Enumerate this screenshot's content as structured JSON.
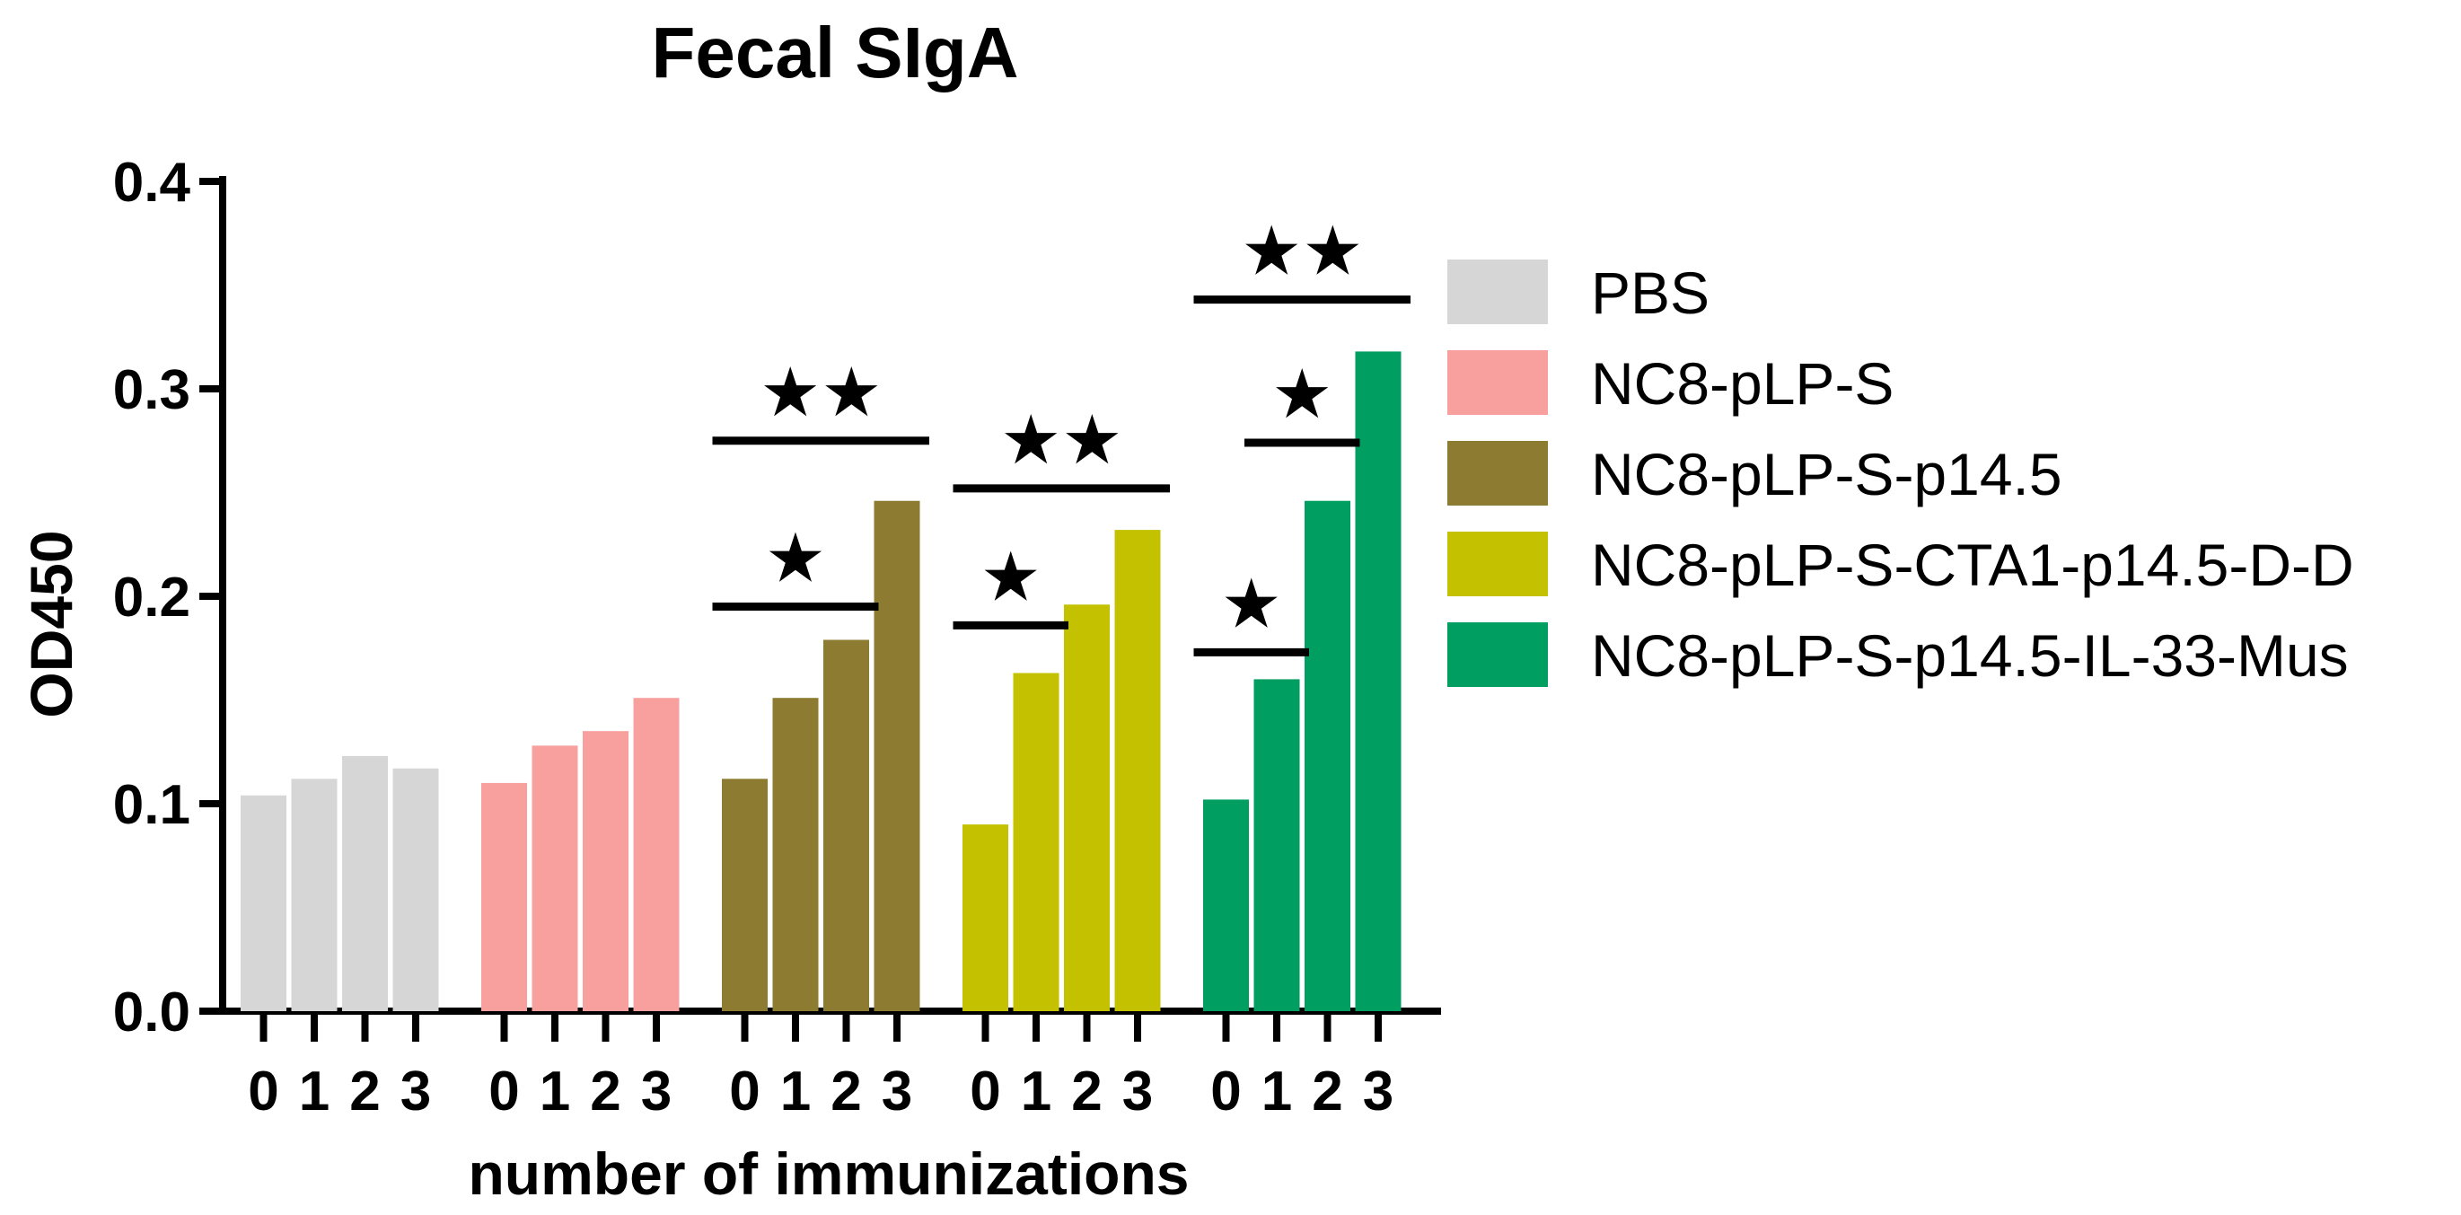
{
  "chart_data": {
    "type": "bar",
    "title": "Fecal SIgA",
    "xlabel": "number of immunizations",
    "ylabel": "OD450",
    "ylim": [
      0,
      0.4
    ],
    "yticks": [
      "0.0",
      "0.1",
      "0.2",
      "0.3",
      "0.4"
    ],
    "categories": [
      "0",
      "1",
      "2",
      "3"
    ],
    "grid": false,
    "legend_position": "right",
    "series": [
      {
        "name": "PBS",
        "color": "#d6d6d6",
        "values": [
          0.104,
          0.112,
          0.123,
          0.117
        ]
      },
      {
        "name": "NC8-pLP-S",
        "color": "#f8a09e",
        "values": [
          0.11,
          0.128,
          0.135,
          0.151
        ]
      },
      {
        "name": "NC8-pLP-S-p14.5",
        "color": "#8c7b31",
        "values": [
          0.112,
          0.151,
          0.179,
          0.246
        ]
      },
      {
        "name": "NC8-pLP-S-CTA1-p14.5-D-D",
        "color": "#c4c200",
        "values": [
          0.09,
          0.163,
          0.196,
          0.232
        ]
      },
      {
        "name": "NC8-pLP-S-p14.5-IL-33-Mus",
        "color": "#009e60",
        "values": [
          0.102,
          0.16,
          0.246,
          0.318
        ]
      }
    ],
    "annotations": [
      {
        "series": 2,
        "from": 0,
        "to": 2,
        "y": 0.195,
        "label": "★"
      },
      {
        "series": 2,
        "from": 0,
        "to": 3,
        "y": 0.275,
        "label": "★★"
      },
      {
        "series": 3,
        "from": 0,
        "to": 1,
        "y": 0.186,
        "label": "★"
      },
      {
        "series": 3,
        "from": 0,
        "to": 3,
        "y": 0.252,
        "label": "★★"
      },
      {
        "series": 4,
        "from": 0,
        "to": 1,
        "y": 0.173,
        "label": "★"
      },
      {
        "series": 4,
        "from": 1,
        "to": 2,
        "y": 0.274,
        "label": "★"
      },
      {
        "series": 4,
        "from": 0,
        "to": 3,
        "y": 0.343,
        "label": "★★"
      }
    ]
  }
}
